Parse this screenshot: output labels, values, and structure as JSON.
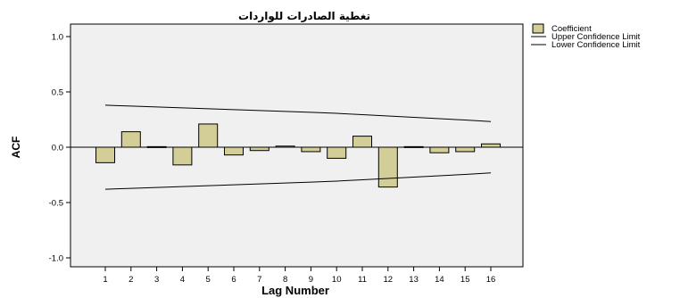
{
  "chart_data": {
    "type": "bar",
    "title": "تغطية الصادرات للواردات",
    "xlabel": "Lag Number",
    "ylabel": "ACF",
    "categories": [
      "1",
      "2",
      "3",
      "4",
      "5",
      "6",
      "7",
      "8",
      "9",
      "10",
      "11",
      "12",
      "13",
      "14",
      "15",
      "16"
    ],
    "ylim": [
      -1.1,
      1.1
    ],
    "yticks": [
      "1.0",
      "0.5",
      "0.0",
      "-0.5",
      "-1.0"
    ],
    "ytick_values": [
      1.0,
      0.5,
      0.0,
      -0.5,
      -1.0
    ],
    "grid": false,
    "legend_position": "top-right",
    "series": [
      {
        "name": "Coefficient",
        "values": [
          -0.14,
          0.14,
          0.005,
          -0.16,
          0.21,
          -0.07,
          -0.03,
          0.01,
          -0.04,
          -0.1,
          0.1,
          -0.36,
          0.005,
          -0.05,
          -0.04,
          0.03
        ]
      },
      {
        "name": "Upper Confidence Limit",
        "values": [
          0.38,
          0.372,
          0.364,
          0.356,
          0.348,
          0.34,
          0.332,
          0.324,
          0.316,
          0.306,
          0.294,
          0.282,
          0.27,
          0.258,
          0.246,
          0.232
        ]
      },
      {
        "name": "Lower Confidence Limit",
        "values": [
          -0.38,
          -0.372,
          -0.364,
          -0.356,
          -0.348,
          -0.34,
          -0.332,
          -0.324,
          -0.316,
          -0.306,
          -0.294,
          -0.282,
          -0.27,
          -0.258,
          -0.246,
          -0.232
        ]
      }
    ],
    "colors": {
      "plot_background": "#f0f0f0",
      "bar_fill": "#d3ce97",
      "bar_stroke": "#000000",
      "line": "#000000"
    }
  }
}
